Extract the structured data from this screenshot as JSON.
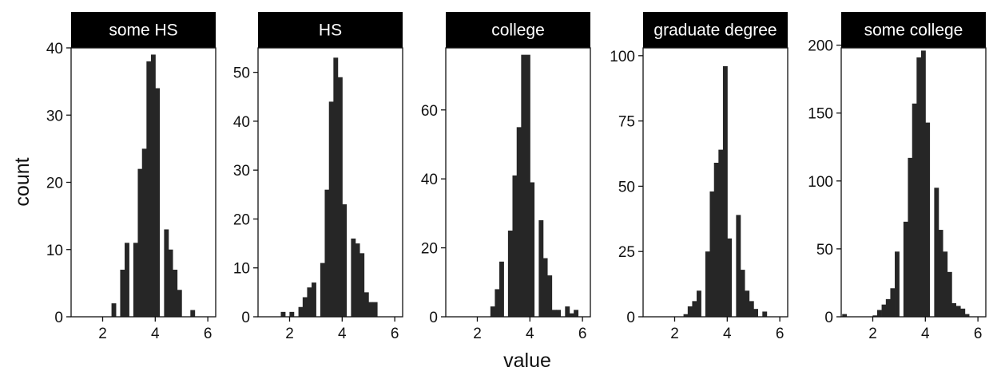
{
  "chart_data": {
    "type": "bar",
    "subtype": "faceted-histogram",
    "xlabel": "value",
    "ylabel": "count",
    "xlim": [
      0.8,
      6.3
    ],
    "x_ticks": [
      2,
      4,
      6
    ],
    "bin_width": 0.1667,
    "grid": false,
    "legend": "none",
    "bar_color": "#262626",
    "strip_color": "#000000",
    "facets": [
      {
        "name": "some HS",
        "ylim": [
          0,
          40
        ],
        "y_ticks": [
          0,
          10,
          20,
          30,
          40
        ],
        "bins": [
          {
            "x": 2.42,
            "count": 2
          },
          {
            "x": 2.75,
            "count": 7
          },
          {
            "x": 2.92,
            "count": 11
          },
          {
            "x": 3.25,
            "count": 11
          },
          {
            "x": 3.42,
            "count": 22
          },
          {
            "x": 3.58,
            "count": 25
          },
          {
            "x": 3.75,
            "count": 38
          },
          {
            "x": 3.92,
            "count": 39
          },
          {
            "x": 4.08,
            "count": 34
          },
          {
            "x": 4.42,
            "count": 13
          },
          {
            "x": 4.58,
            "count": 10
          },
          {
            "x": 4.75,
            "count": 7
          },
          {
            "x": 4.92,
            "count": 4
          },
          {
            "x": 5.42,
            "count": 1
          }
        ]
      },
      {
        "name": "HS",
        "ylim": [
          0,
          55
        ],
        "y_ticks": [
          0,
          10,
          20,
          30,
          40,
          50
        ],
        "bins": [
          {
            "x": 1.75,
            "count": 1
          },
          {
            "x": 2.08,
            "count": 1
          },
          {
            "x": 2.42,
            "count": 2
          },
          {
            "x": 2.58,
            "count": 4
          },
          {
            "x": 2.75,
            "count": 6
          },
          {
            "x": 2.92,
            "count": 7
          },
          {
            "x": 3.25,
            "count": 11
          },
          {
            "x": 3.42,
            "count": 26
          },
          {
            "x": 3.58,
            "count": 44
          },
          {
            "x": 3.75,
            "count": 53
          },
          {
            "x": 3.92,
            "count": 49
          },
          {
            "x": 4.08,
            "count": 23
          },
          {
            "x": 4.42,
            "count": 16
          },
          {
            "x": 4.58,
            "count": 15
          },
          {
            "x": 4.75,
            "count": 13
          },
          {
            "x": 4.92,
            "count": 5
          },
          {
            "x": 5.08,
            "count": 3
          },
          {
            "x": 5.25,
            "count": 3
          }
        ]
      },
      {
        "name": "college",
        "ylim": [
          0,
          78
        ],
        "y_ticks": [
          0,
          20,
          40,
          60
        ],
        "bins": [
          {
            "x": 2.58,
            "count": 3
          },
          {
            "x": 2.75,
            "count": 8
          },
          {
            "x": 2.92,
            "count": 16
          },
          {
            "x": 3.25,
            "count": 25
          },
          {
            "x": 3.42,
            "count": 41
          },
          {
            "x": 3.58,
            "count": 55
          },
          {
            "x": 3.75,
            "count": 76
          },
          {
            "x": 3.92,
            "count": 76
          },
          {
            "x": 4.08,
            "count": 39
          },
          {
            "x": 4.42,
            "count": 28
          },
          {
            "x": 4.58,
            "count": 17
          },
          {
            "x": 4.75,
            "count": 12
          },
          {
            "x": 4.92,
            "count": 2
          },
          {
            "x": 5.08,
            "count": 2
          },
          {
            "x": 5.42,
            "count": 3
          },
          {
            "x": 5.58,
            "count": 1
          },
          {
            "x": 5.75,
            "count": 2
          }
        ]
      },
      {
        "name": "graduate degree",
        "ylim": [
          0,
          103
        ],
        "y_ticks": [
          0,
          25,
          50,
          75,
          100
        ],
        "bins": [
          {
            "x": 2.42,
            "count": 1
          },
          {
            "x": 2.58,
            "count": 4
          },
          {
            "x": 2.75,
            "count": 6
          },
          {
            "x": 2.92,
            "count": 10
          },
          {
            "x": 3.25,
            "count": 25
          },
          {
            "x": 3.42,
            "count": 48
          },
          {
            "x": 3.58,
            "count": 59
          },
          {
            "x": 3.75,
            "count": 64
          },
          {
            "x": 3.92,
            "count": 96
          },
          {
            "x": 4.08,
            "count": 30
          },
          {
            "x": 4.42,
            "count": 39
          },
          {
            "x": 4.58,
            "count": 18
          },
          {
            "x": 4.75,
            "count": 10
          },
          {
            "x": 4.92,
            "count": 6
          },
          {
            "x": 5.08,
            "count": 3
          },
          {
            "x": 5.42,
            "count": 2
          }
        ]
      },
      {
        "name": "some college",
        "ylim": [
          0,
          198
        ],
        "y_ticks": [
          0,
          50,
          100,
          150,
          200
        ],
        "bins": [
          {
            "x": 0.92,
            "count": 2
          },
          {
            "x": 2.08,
            "count": 1
          },
          {
            "x": 2.25,
            "count": 5
          },
          {
            "x": 2.42,
            "count": 9
          },
          {
            "x": 2.58,
            "count": 13
          },
          {
            "x": 2.75,
            "count": 21
          },
          {
            "x": 2.92,
            "count": 48
          },
          {
            "x": 3.25,
            "count": 70
          },
          {
            "x": 3.42,
            "count": 117
          },
          {
            "x": 3.58,
            "count": 157
          },
          {
            "x": 3.75,
            "count": 191
          },
          {
            "x": 3.92,
            "count": 196
          },
          {
            "x": 4.08,
            "count": 143
          },
          {
            "x": 4.42,
            "count": 95
          },
          {
            "x": 4.58,
            "count": 64
          },
          {
            "x": 4.75,
            "count": 48
          },
          {
            "x": 4.92,
            "count": 33
          },
          {
            "x": 5.08,
            "count": 10
          },
          {
            "x": 5.25,
            "count": 8
          },
          {
            "x": 5.42,
            "count": 6
          },
          {
            "x": 5.58,
            "count": 2
          }
        ]
      }
    ]
  }
}
